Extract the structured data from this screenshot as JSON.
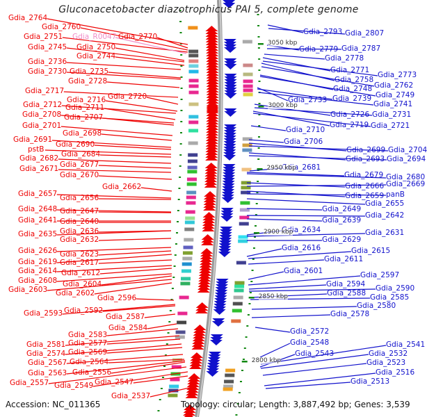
{
  "title": "Gluconacetobacter diazotrophicus PAI 5, complete genome",
  "footer": {
    "accession": "Accession: NC_011365",
    "summary": "Topology: circular; Length: 3,887,492 bp; Genes: 3,539"
  },
  "colors": {
    "forward_strand": "#ee0000",
    "reverse_strand": "#1111cc",
    "rna_label": "#f08cc8",
    "backbone": "#888888",
    "tick": "#118811"
  },
  "position_markers": [
    "3050 kbp",
    "3000 kbp",
    "2950 kbp",
    "2900 kbp",
    "2850 kbp",
    "2800 kbp"
  ],
  "left_labels": [
    {
      "text": "Gdia_2764"
    },
    {
      "text": "Gdia_2760"
    },
    {
      "text": "Gdia_2751"
    },
    {
      "text": "Gdia_R0047",
      "type": "rna"
    },
    {
      "text": "Gdia_2770"
    },
    {
      "text": "Gdia_2745"
    },
    {
      "text": "Gdia_2750"
    },
    {
      "text": "Gdia_2744"
    },
    {
      "text": "Gdia_2736"
    },
    {
      "text": "Gdia_2730"
    },
    {
      "text": "Gdia_2735"
    },
    {
      "text": "Gdia_2728"
    },
    {
      "text": "Gdia_2717"
    },
    {
      "text": "Gdia_2716"
    },
    {
      "text": "Gdia_2720"
    },
    {
      "text": "Gdia_2712"
    },
    {
      "text": "Gdia_2711"
    },
    {
      "text": "Gdia_2708"
    },
    {
      "text": "Gdia_2707"
    },
    {
      "text": "Gdia_2701"
    },
    {
      "text": "Gdia_2698"
    },
    {
      "text": "Gdia_2691"
    },
    {
      "text": "Gdia_2690"
    },
    {
      "text": "pstB"
    },
    {
      "text": "Gdia_2684"
    },
    {
      "text": "Gdia_2682"
    },
    {
      "text": "Gdia_2677"
    },
    {
      "text": "Gdia_2671"
    },
    {
      "text": "Gdia_2670"
    },
    {
      "text": "Gdia_2662"
    },
    {
      "text": "Gdia_2657"
    },
    {
      "text": "Gdia_2656"
    },
    {
      "text": "Gdia_2648"
    },
    {
      "text": "Gdia_2647"
    },
    {
      "text": "Gdia_2641"
    },
    {
      "text": "Gdia_2640"
    },
    {
      "text": "Gdia_2635"
    },
    {
      "text": "Gdia_2636"
    },
    {
      "text": "Gdia_2632"
    },
    {
      "text": "Gdia_2626"
    },
    {
      "text": "Gdia_2623"
    },
    {
      "text": "Gdia_2619"
    },
    {
      "text": "Gdia_2617"
    },
    {
      "text": "Gdia_2614"
    },
    {
      "text": "Gdia_2612"
    },
    {
      "text": "Gdia_2608"
    },
    {
      "text": "Gdia_2604"
    },
    {
      "text": "Gdia_2603"
    },
    {
      "text": "Gdia_2602"
    },
    {
      "text": "Gdia_2596"
    },
    {
      "text": "Gdia_2593"
    },
    {
      "text": "Gdia_2592"
    },
    {
      "text": "Gdia_2587"
    },
    {
      "text": "Gdia_2584"
    },
    {
      "text": "Gdia_2583"
    },
    {
      "text": "Gdia_2581"
    },
    {
      "text": "Gdia_2577"
    },
    {
      "text": "Gdia_2574"
    },
    {
      "text": "Gdia_2569"
    },
    {
      "text": "Gdia_2567"
    },
    {
      "text": "Gdia_2564"
    },
    {
      "text": "Gdia_2563"
    },
    {
      "text": "Gdia_2556"
    },
    {
      "text": "Gdia_2557"
    },
    {
      "text": "Gdia_2549"
    },
    {
      "text": "Gdia_2547"
    },
    {
      "text": "Gdia_2537"
    }
  ],
  "right_labels": [
    {
      "text": "Gdia_2793"
    },
    {
      "text": "Gdia_2807"
    },
    {
      "text": "Gdia_2779"
    },
    {
      "text": "Gdia_2787"
    },
    {
      "text": "Gdia_2778"
    },
    {
      "text": "Gdia_2771"
    },
    {
      "text": "Gdia_2773"
    },
    {
      "text": "Gdia_2758"
    },
    {
      "text": "Gdia_2762"
    },
    {
      "text": "Gdia_2748"
    },
    {
      "text": "Gdia_2749"
    },
    {
      "text": "Gdia_2733"
    },
    {
      "text": "Gdia_2739"
    },
    {
      "text": "Gdia_2741"
    },
    {
      "text": "Gdia_2726"
    },
    {
      "text": "Gdia_2731"
    },
    {
      "text": "Gdia_2719"
    },
    {
      "text": "Gdia_2721"
    },
    {
      "text": "Gdia_2710"
    },
    {
      "text": "Gdia_2706"
    },
    {
      "text": "Gdia_2699"
    },
    {
      "text": "Gdia_2704"
    },
    {
      "text": "Gdia_2693"
    },
    {
      "text": "Gdia_2694"
    },
    {
      "text": "Gdia_2681"
    },
    {
      "text": "Gdia_2679"
    },
    {
      "text": "Gdia_2680"
    },
    {
      "text": "Gdia_2666"
    },
    {
      "text": "Gdia_2669"
    },
    {
      "text": "Gdia_2659"
    },
    {
      "text": "panB"
    },
    {
      "text": "Gdia_2655"
    },
    {
      "text": "Gdia_2649"
    },
    {
      "text": "Gdia_2642"
    },
    {
      "text": "Gdia_2639"
    },
    {
      "text": "Gdia_2634"
    },
    {
      "text": "Gdia_2631"
    },
    {
      "text": "Gdia_2629"
    },
    {
      "text": "Gdia_2616"
    },
    {
      "text": "Gdia_2615"
    },
    {
      "text": "Gdia_2611"
    },
    {
      "text": "Gdia_2601"
    },
    {
      "text": "Gdia_2597"
    },
    {
      "text": "Gdia_2594"
    },
    {
      "text": "Gdia_2590"
    },
    {
      "text": "Gdia_2588"
    },
    {
      "text": "Gdia_2585"
    },
    {
      "text": "Gdia_2580"
    },
    {
      "text": "Gdia_2578"
    },
    {
      "text": "Gdia_2572"
    },
    {
      "text": "Gdia_2548"
    },
    {
      "text": "Gdia_2541"
    },
    {
      "text": "Gdia_2543"
    },
    {
      "text": "Gdia_2532"
    },
    {
      "text": "Gdia_2523"
    },
    {
      "text": "Gdia_2516"
    },
    {
      "text": "Gdia_2513"
    }
  ]
}
